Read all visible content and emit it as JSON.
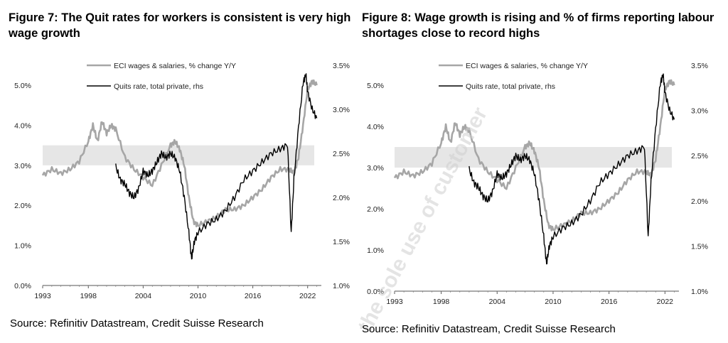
{
  "figures": [
    {
      "title": "Figure 7: The Quit rates for workers is consistent is very high wage growth",
      "source": "Source: Refinitiv Datastream, Credit Suisse Research"
    },
    {
      "title": "Figure 8: Wage growth is rising and % of firms reporting labour shortages close to record highs",
      "source": "Source: Refinitiv Datastream, Credit Suisse Research"
    }
  ],
  "watermark": "the sole use of customer",
  "chart_data": [
    {
      "type": "line",
      "title": "",
      "xlabel": "",
      "ylabel": "",
      "x_ticks": [
        "1993",
        "1998",
        "2004",
        "2010",
        "2016",
        "2022"
      ],
      "x_tick_values": [
        1993,
        1998,
        2004,
        2010,
        2016,
        2022
      ],
      "xlim": [
        1993,
        2023.5
      ],
      "y_ticks": [
        "0.0%",
        "1.0%",
        "2.0%",
        "3.0%",
        "4.0%",
        "5.0%"
      ],
      "y_tick_values": [
        0,
        1,
        2,
        3,
        4,
        5
      ],
      "ylim": [
        0,
        5.0
      ],
      "y2_ticks": [
        "1.0%",
        "1.5%",
        "2.0%",
        "2.5%",
        "3.0%",
        "3.5%"
      ],
      "y2_tick_values": [
        1.0,
        1.5,
        2.0,
        2.5,
        3.0,
        3.5
      ],
      "y2lim": [
        1.0,
        3.5
      ],
      "band": [
        3.0,
        3.5
      ],
      "legend_position": "top-center",
      "series": [
        {
          "name": "ECI wages & salaries, % change Y/Y",
          "axis": "left",
          "color": "#a6a6a6",
          "x": [
            1993,
            1994,
            1995,
            1996,
            1997,
            1998,
            1998.5,
            1999,
            1999.5,
            2000,
            2000.5,
            2001,
            2002,
            2003,
            2004,
            2005,
            2006,
            2007,
            2007.5,
            2008,
            2008.5,
            2009,
            2009.5,
            2010,
            2011,
            2012,
            2013,
            2014,
            2015,
            2016,
            2017,
            2018,
            2019,
            2020,
            2020.5,
            2021,
            2021.5,
            2022,
            2022.5,
            2023
          ],
          "y": [
            2.75,
            2.9,
            2.8,
            2.9,
            3.1,
            3.6,
            4.0,
            3.6,
            4.1,
            3.8,
            4.0,
            3.9,
            3.2,
            2.9,
            2.7,
            2.5,
            3.0,
            3.5,
            3.6,
            3.4,
            3.0,
            2.2,
            1.6,
            1.5,
            1.6,
            1.7,
            1.9,
            1.9,
            2.0,
            2.2,
            2.4,
            2.7,
            2.9,
            2.9,
            2.8,
            3.2,
            4.0,
            4.9,
            5.1,
            5.0
          ]
        },
        {
          "name": "Quits rate, total private, rhs",
          "axis": "right",
          "color": "#000000",
          "x": [
            2001,
            2001.5,
            2002,
            2002.5,
            2003,
            2003.5,
            2004,
            2004.5,
            2005,
            2005.5,
            2006,
            2006.5,
            2007,
            2007.5,
            2008,
            2008.5,
            2009,
            2009.3,
            2009.6,
            2010,
            2011,
            2012,
            2013,
            2014,
            2015,
            2016,
            2017,
            2018,
            2019,
            2019.8,
            2020.2,
            2020.5,
            2021,
            2021.5,
            2021.8,
            2022,
            2022.5,
            2023
          ],
          "y": [
            2.35,
            2.2,
            2.15,
            2.05,
            2.0,
            2.1,
            2.3,
            2.25,
            2.3,
            2.4,
            2.5,
            2.45,
            2.5,
            2.45,
            2.3,
            2.0,
            1.6,
            1.3,
            1.5,
            1.6,
            1.7,
            1.75,
            1.85,
            2.0,
            2.2,
            2.3,
            2.4,
            2.5,
            2.55,
            2.6,
            1.6,
            2.2,
            2.8,
            3.3,
            3.4,
            3.2,
            3.0,
            2.9
          ]
        }
      ]
    },
    {
      "type": "line",
      "title": "",
      "xlabel": "",
      "ylabel": "",
      "x_ticks": [
        "1993",
        "1998",
        "2004",
        "2010",
        "2016",
        "2022"
      ],
      "x_tick_values": [
        1993,
        1998,
        2004,
        2010,
        2016,
        2022
      ],
      "xlim": [
        1993,
        2023.5
      ],
      "y_ticks": [
        "0.0%",
        "1.0%",
        "2.0%",
        "3.0%",
        "4.0%",
        "5.0%"
      ],
      "y_tick_values": [
        0,
        1,
        2,
        3,
        4,
        5
      ],
      "ylim": [
        0,
        5.0
      ],
      "y2_ticks": [
        "1.0%",
        "1.5%",
        "2.0%",
        "2.5%",
        "3.0%",
        "3.5%"
      ],
      "y2_tick_values": [
        1.0,
        1.5,
        2.0,
        2.5,
        3.0,
        3.5
      ],
      "y2lim": [
        1.0,
        3.5
      ],
      "band": [
        3.0,
        3.5
      ],
      "legend_position": "top-center",
      "series": [
        {
          "name": "ECI wages & salaries, % change Y/Y",
          "axis": "left",
          "color": "#a6a6a6",
          "x": [
            1993,
            1994,
            1995,
            1996,
            1997,
            1998,
            1998.5,
            1999,
            1999.5,
            2000,
            2000.5,
            2001,
            2002,
            2003,
            2004,
            2005,
            2006,
            2007,
            2007.5,
            2008,
            2008.5,
            2009,
            2009.5,
            2010,
            2011,
            2012,
            2013,
            2014,
            2015,
            2016,
            2017,
            2018,
            2019,
            2020,
            2020.5,
            2021,
            2021.5,
            2022,
            2022.5,
            2023
          ],
          "y": [
            2.75,
            2.9,
            2.8,
            2.9,
            3.1,
            3.6,
            4.0,
            3.6,
            4.1,
            3.8,
            4.0,
            3.9,
            3.2,
            2.9,
            2.7,
            2.5,
            3.0,
            3.5,
            3.6,
            3.4,
            3.0,
            2.2,
            1.6,
            1.5,
            1.6,
            1.7,
            1.9,
            1.9,
            2.0,
            2.2,
            2.4,
            2.7,
            2.9,
            2.9,
            2.8,
            3.2,
            4.0,
            4.9,
            5.1,
            5.0
          ]
        },
        {
          "name": "Quits rate, total private, rhs",
          "axis": "right",
          "color": "#000000",
          "x": [
            2001,
            2001.5,
            2002,
            2002.5,
            2003,
            2003.5,
            2004,
            2004.5,
            2005,
            2005.5,
            2006,
            2006.5,
            2007,
            2007.5,
            2008,
            2008.5,
            2009,
            2009.3,
            2009.6,
            2010,
            2011,
            2012,
            2013,
            2014,
            2015,
            2016,
            2017,
            2018,
            2019,
            2019.8,
            2020.2,
            2020.5,
            2021,
            2021.5,
            2021.8,
            2022,
            2022.5,
            2023
          ],
          "y": [
            2.35,
            2.2,
            2.15,
            2.05,
            2.0,
            2.1,
            2.3,
            2.25,
            2.3,
            2.4,
            2.5,
            2.45,
            2.5,
            2.45,
            2.3,
            2.0,
            1.6,
            1.3,
            1.5,
            1.6,
            1.7,
            1.75,
            1.85,
            2.0,
            2.2,
            2.3,
            2.4,
            2.5,
            2.55,
            2.6,
            1.6,
            2.2,
            2.8,
            3.3,
            3.4,
            3.2,
            3.0,
            2.9
          ]
        }
      ]
    }
  ]
}
